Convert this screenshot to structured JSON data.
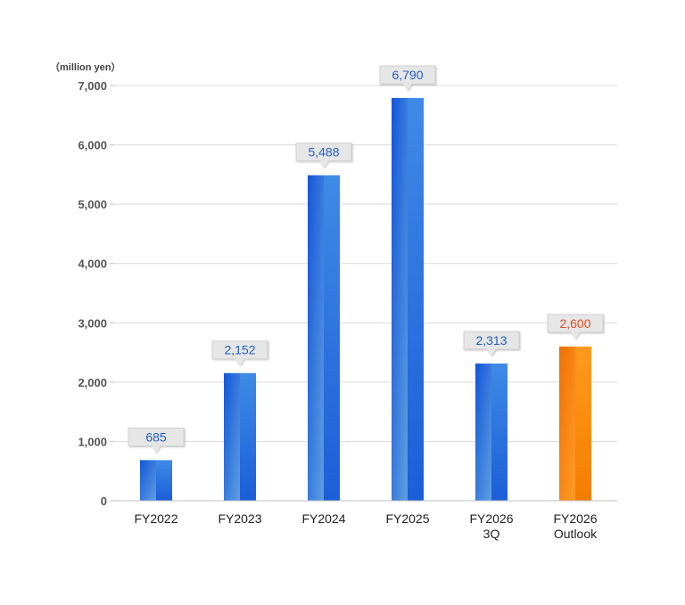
{
  "chart_data": {
    "type": "bar",
    "unit_label": "（million yen）",
    "categories": [
      [
        "FY2022"
      ],
      [
        "FY2023"
      ],
      [
        "FY2024"
      ],
      [
        "FY2025"
      ],
      [
        "FY2026",
        "3Q"
      ],
      [
        "FY2026",
        "Outlook"
      ]
    ],
    "values": [
      685,
      2152,
      5488,
      6790,
      2313,
      2600
    ],
    "data_labels": [
      "685",
      "2,152",
      "5,488",
      "6,790",
      "2,313",
      "2,600"
    ],
    "y_ticks": [
      "0",
      "1,000",
      "2,000",
      "3,000",
      "4,000",
      "5,000",
      "6,000",
      "7,000"
    ],
    "ylim": [
      0,
      7000
    ],
    "grid": true,
    "legend": "none",
    "colors": {
      "actual": "#1a5fd6",
      "actual_light": "#5b9ee0",
      "outlook": "#f57c00",
      "outlook_light": "#ffa033",
      "actual_label": "#1f5fc8",
      "outlook_label": "#e8491f"
    },
    "highlight_index": 5
  }
}
